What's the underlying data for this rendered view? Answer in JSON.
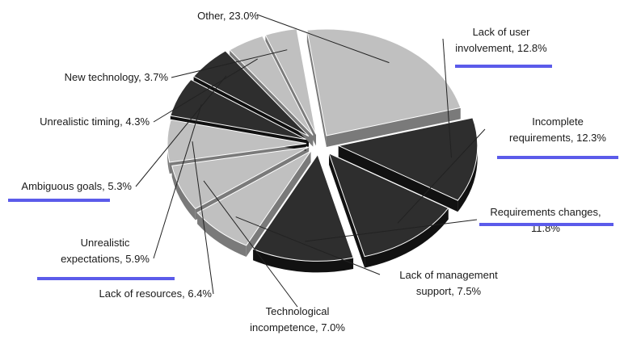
{
  "chart_data": {
    "type": "pie",
    "title": "",
    "exploded": true,
    "three_d": true,
    "slices": [
      {
        "label_lines": [
          "Other, 23.0%"
        ],
        "value": 23.0,
        "color": "#c0c0c0",
        "side": "#7a7a7a",
        "highlight": false
      },
      {
        "label_lines": [
          "Lack of user",
          "involvement, 12.8%"
        ],
        "value": 12.8,
        "color": "#2e2e2e",
        "side": "#111111",
        "highlight": true
      },
      {
        "label_lines": [
          "Incomplete",
          "requirements, 12.3%"
        ],
        "value": 12.3,
        "color": "#2e2e2e",
        "side": "#111111",
        "highlight": true
      },
      {
        "label_lines": [
          "Requirements changes,",
          "11.8%"
        ],
        "value": 11.8,
        "color": "#2e2e2e",
        "side": "#111111",
        "highlight": true
      },
      {
        "label_lines": [
          "Lack of management",
          "support, 7.5%"
        ],
        "value": 7.5,
        "color": "#c0c0c0",
        "side": "#7a7a7a",
        "highlight": false
      },
      {
        "label_lines": [
          "Technological",
          "incompetence, 7.0%"
        ],
        "value": 7.0,
        "color": "#c0c0c0",
        "side": "#7a7a7a",
        "highlight": false
      },
      {
        "label_lines": [
          "Lack of resources, 6.4%"
        ],
        "value": 6.4,
        "color": "#c0c0c0",
        "side": "#7a7a7a",
        "highlight": false
      },
      {
        "label_lines": [
          "Unrealistic",
          "expectations, 5.9%"
        ],
        "value": 5.9,
        "color": "#2e2e2e",
        "side": "#111111",
        "highlight": true
      },
      {
        "label_lines": [
          "Ambiguous goals, 5.3%"
        ],
        "value": 5.3,
        "color": "#2e2e2e",
        "side": "#111111",
        "highlight": true
      },
      {
        "label_lines": [
          "Unrealistic timing, 4.3%"
        ],
        "value": 4.3,
        "color": "#c0c0c0",
        "side": "#7a7a7a",
        "highlight": false
      },
      {
        "label_lines": [
          "New technology, 3.7%"
        ],
        "value": 3.7,
        "color": "#c0c0c0",
        "side": "#7a7a7a",
        "highlight": false
      }
    ],
    "highlight_color": "#5b5bea"
  }
}
